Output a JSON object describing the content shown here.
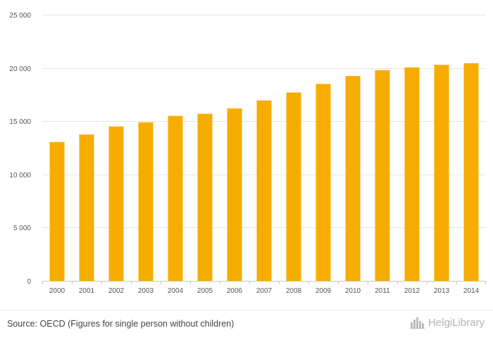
{
  "chart_data": {
    "type": "bar",
    "title": "",
    "xlabel": "",
    "ylabel": "",
    "categories": [
      "2000",
      "2001",
      "2002",
      "2003",
      "2004",
      "2005",
      "2006",
      "2007",
      "2008",
      "2009",
      "2010",
      "2011",
      "2012",
      "2013",
      "2014"
    ],
    "values": [
      13050,
      13750,
      14500,
      14900,
      15500,
      15700,
      16200,
      16950,
      17700,
      18500,
      19250,
      19800,
      20050,
      20300,
      20450
    ],
    "ylim": [
      0,
      25000
    ],
    "yticks": [
      0,
      5000,
      10000,
      15000,
      20000,
      25000
    ],
    "ytick_labels": [
      "0",
      "5 000",
      "10 000",
      "15 000",
      "20 000",
      "25 000"
    ],
    "grid": true,
    "bar_color": "#f7ad00",
    "grid_color": "#e6e6e6"
  },
  "footer": {
    "source": "Source: OECD (Figures for single person without children)",
    "logo_text": "HelgiLibrary",
    "logo_icon": "city-skyline-icon"
  }
}
